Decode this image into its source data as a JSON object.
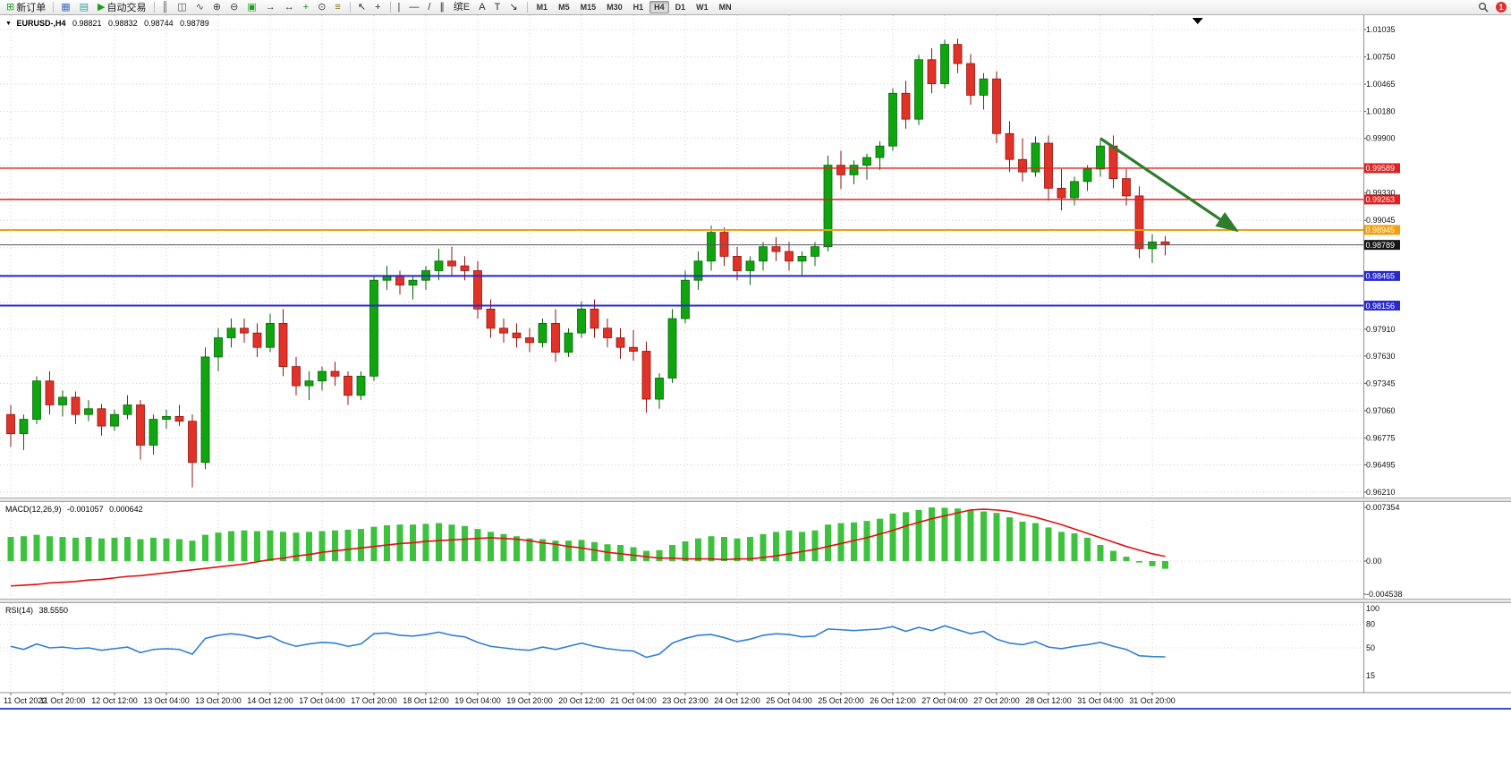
{
  "toolbar": {
    "items": [
      {
        "name": "new-order-button",
        "glyph": "⊞",
        "color": "#1d9f1d",
        "label": "新订单"
      },
      {
        "name": "separator"
      },
      {
        "name": "chart-window-icon",
        "glyph": "▦",
        "color": "#4070c0"
      },
      {
        "name": "profiles-icon",
        "glyph": "▤",
        "color": "#2f9f9f"
      },
      {
        "name": "auto-trading-button",
        "glyph": "▶",
        "color": "#1d9f1d",
        "label": "自动交易"
      },
      {
        "name": "separator"
      },
      {
        "name": "bar-chart-icon",
        "glyph": "║",
        "color": "#555555"
      },
      {
        "name": "candlestick-icon",
        "glyph": "◫",
        "color": "#555555"
      },
      {
        "name": "line-chart-icon",
        "glyph": "∿",
        "color": "#555555"
      },
      {
        "name": "zoom-in-icon",
        "glyph": "⊕",
        "color": "#404040"
      },
      {
        "name": "zoom-out-icon",
        "glyph": "⊖",
        "color": "#404040"
      },
      {
        "name": "tile-windows-icon",
        "glyph": "▣",
        "color": "#1d9f1d"
      },
      {
        "name": "auto-scroll-icon",
        "glyph": "→",
        "color": "#404040"
      },
      {
        "name": "chart-shift-icon",
        "glyph": "↔",
        "color": "#404040"
      },
      {
        "name": "indicators-icon",
        "glyph": "+",
        "color": "#0f8f0f"
      },
      {
        "name": "periods-icon",
        "glyph": "⊙",
        "color": "#404040"
      },
      {
        "name": "templates-icon",
        "glyph": "≡",
        "color": "#8a6a1a"
      },
      {
        "name": "separator"
      },
      {
        "name": "cursor-icon",
        "glyph": "↖",
        "color": "#303030"
      },
      {
        "name": "crosshair-icon",
        "glyph": "+",
        "color": "#303030"
      },
      {
        "name": "separator"
      },
      {
        "name": "vertical-line-icon",
        "glyph": "|",
        "color": "#303030"
      },
      {
        "name": "horizontal-line-icon",
        "glyph": "—",
        "color": "#303030"
      },
      {
        "name": "trendline-icon",
        "glyph": "/",
        "color": "#303030"
      },
      {
        "name": "channel-icon",
        "glyph": "∥",
        "color": "#303030"
      },
      {
        "name": "fibonacci-icon",
        "glyph": "缤E",
        "color": "#303030"
      },
      {
        "name": "text-icon",
        "glyph": "A",
        "color": "#303030"
      },
      {
        "name": "label-icon",
        "glyph": "T",
        "color": "#303030"
      },
      {
        "name": "arrows-icon",
        "glyph": "↘",
        "color": "#303030"
      },
      {
        "name": "separator"
      }
    ],
    "timeframes": [
      "M1",
      "M5",
      "M15",
      "M30",
      "H1",
      "H4",
      "D1",
      "W1",
      "MN"
    ],
    "active_timeframe": "H4",
    "badge": "1"
  },
  "chart": {
    "dropdown_glyph": "▼",
    "title": "EURUSD-,H4",
    "open": "0.98821",
    "high": "0.98832",
    "low": "0.98744",
    "close": "0.98789"
  },
  "chart_data": {
    "type": "candlestick",
    "symbol": "EURUSD-",
    "timeframe": "H4",
    "colors": {
      "up": "#0fa50f",
      "up_stroke": "#056505",
      "down": "#e23228",
      "down_stroke": "#8e1410",
      "grid": "#cfcfcf",
      "macd_hist": "#3cc23c",
      "macd_signal": "#e01010",
      "rsi_line": "#2f7fd6",
      "arrow": "#2d7d2d"
    },
    "price_axis": {
      "grid_prices": [
        1.01035,
        1.0075,
        1.00465,
        1.0018,
        0.999,
        0.99615,
        0.9933,
        0.99045,
        0.9876,
        0.98475,
        0.9819,
        0.9791,
        0.9763,
        0.97345,
        0.9706,
        0.96775,
        0.96495,
        0.9621
      ],
      "labels": [
        {
          "text": "1.01035",
          "price": 1.01035
        },
        {
          "text": "1.00750",
          "price": 1.0075
        },
        {
          "text": "1.00465",
          "price": 1.00465
        },
        {
          "text": "1.00180",
          "price": 1.0018
        },
        {
          "text": "0.99900",
          "price": 0.999
        },
        {
          "text": "0.99330",
          "price": 0.9933
        },
        {
          "text": "0.99045",
          "price": 0.99045
        },
        {
          "text": "0.97910",
          "price": 0.9791
        },
        {
          "text": "0.97630",
          "price": 0.9763
        },
        {
          "text": "0.97345",
          "price": 0.97345
        },
        {
          "text": "0.97060",
          "price": 0.9706
        },
        {
          "text": "0.96775",
          "price": 0.96775
        },
        {
          "text": "0.96495",
          "price": 0.96495
        },
        {
          "text": "0.96210",
          "price": 0.9621
        }
      ]
    },
    "hlines": [
      {
        "price": 0.99589,
        "label": "0.99589",
        "color": "#e02020",
        "width": 1.4
      },
      {
        "price": 0.99263,
        "label": "0.99263",
        "color": "#e02020",
        "width": 1.4
      },
      {
        "price": 0.98945,
        "label": "0.98945",
        "color": "#f0a010",
        "width": 2
      },
      {
        "price": 0.98465,
        "label": "0.98465",
        "color": "#2828d0",
        "width": 2
      },
      {
        "price": 0.98156,
        "label": "0.98156",
        "color": "#2828d0",
        "width": 2
      }
    ],
    "current_price": {
      "price": 0.98789,
      "label": "0.98789",
      "line_color": "#555555",
      "badge_color": "#141414"
    },
    "annotation_arrow": {
      "from_candle": 84,
      "from_price": 0.999,
      "to_candle": 94.5,
      "to_price": 0.9894
    },
    "shift_marker_candle": 91.5,
    "x_labels": [
      "11 Oct 2022",
      "11 Oct 20:00",
      "12 Oct 12:00",
      "13 Oct 04:00",
      "13 Oct 20:00",
      "14 Oct 12:00",
      "17 Oct 04:00",
      "17 Oct 20:00",
      "18 Oct 12:00",
      "19 Oct 04:00",
      "19 Oct 20:00",
      "20 Oct 12:00",
      "21 Oct 04:00",
      "23 Oct 23:00",
      "24 Oct 12:00",
      "25 Oct 04:00",
      "25 Oct 20:00",
      "26 Oct 12:00",
      "27 Oct 04:00",
      "27 Oct 20:00",
      "28 Oct 12:00",
      "31 Oct 04:00",
      "31 Oct 20:00"
    ],
    "candles": [
      [
        0.9702,
        0.9712,
        0.9668,
        0.9682
      ],
      [
        0.9682,
        0.9702,
        0.9665,
        0.9697
      ],
      [
        0.9697,
        0.9742,
        0.9692,
        0.9737
      ],
      [
        0.9737,
        0.9747,
        0.9702,
        0.9712
      ],
      [
        0.9712,
        0.9727,
        0.97,
        0.972
      ],
      [
        0.972,
        0.9726,
        0.9692,
        0.9702
      ],
      [
        0.9702,
        0.9717,
        0.9695,
        0.9708
      ],
      [
        0.9708,
        0.9713,
        0.968,
        0.969
      ],
      [
        0.969,
        0.9707,
        0.9685,
        0.9702
      ],
      [
        0.9702,
        0.9722,
        0.9697,
        0.9712
      ],
      [
        0.9712,
        0.9717,
        0.9655,
        0.967
      ],
      [
        0.967,
        0.9702,
        0.966,
        0.9697
      ],
      [
        0.9697,
        0.9707,
        0.9687,
        0.97
      ],
      [
        0.97,
        0.9712,
        0.969,
        0.9695
      ],
      [
        0.9695,
        0.9702,
        0.9626,
        0.9652
      ],
      [
        0.9652,
        0.9772,
        0.9645,
        0.9762
      ],
      [
        0.9762,
        0.9792,
        0.9747,
        0.9782
      ],
      [
        0.9782,
        0.9802,
        0.9772,
        0.9792
      ],
      [
        0.9792,
        0.9802,
        0.9777,
        0.9787
      ],
      [
        0.9787,
        0.9797,
        0.9762,
        0.9772
      ],
      [
        0.9772,
        0.9807,
        0.9767,
        0.9797
      ],
      [
        0.9797,
        0.9812,
        0.9742,
        0.9752
      ],
      [
        0.9752,
        0.9762,
        0.9722,
        0.9732
      ],
      [
        0.9732,
        0.9747,
        0.9717,
        0.9737
      ],
      [
        0.9737,
        0.9752,
        0.9727,
        0.9747
      ],
      [
        0.9747,
        0.9757,
        0.9732,
        0.9742
      ],
      [
        0.9742,
        0.9747,
        0.9712,
        0.9722
      ],
      [
        0.9722,
        0.9747,
        0.9717,
        0.9742
      ],
      [
        0.9742,
        0.9847,
        0.9737,
        0.9842
      ],
      [
        0.9842,
        0.9857,
        0.9832,
        0.9847
      ],
      [
        0.9847,
        0.9852,
        0.9827,
        0.9837
      ],
      [
        0.9837,
        0.9847,
        0.9822,
        0.9842
      ],
      [
        0.9842,
        0.9857,
        0.9832,
        0.9852
      ],
      [
        0.9852,
        0.9875,
        0.9842,
        0.9862
      ],
      [
        0.9862,
        0.9877,
        0.9847,
        0.9857
      ],
      [
        0.9857,
        0.9867,
        0.9842,
        0.9852
      ],
      [
        0.9852,
        0.9862,
        0.9802,
        0.9812
      ],
      [
        0.9812,
        0.9822,
        0.9782,
        0.9792
      ],
      [
        0.9792,
        0.9802,
        0.9777,
        0.9787
      ],
      [
        0.9787,
        0.9797,
        0.9772,
        0.9782
      ],
      [
        0.9782,
        0.9792,
        0.9767,
        0.9777
      ],
      [
        0.9777,
        0.9802,
        0.9772,
        0.9797
      ],
      [
        0.9797,
        0.9812,
        0.9757,
        0.9767
      ],
      [
        0.9767,
        0.9792,
        0.9762,
        0.9787
      ],
      [
        0.9787,
        0.982,
        0.9782,
        0.9812
      ],
      [
        0.9812,
        0.9822,
        0.9782,
        0.9792
      ],
      [
        0.9792,
        0.9802,
        0.9772,
        0.9782
      ],
      [
        0.9782,
        0.9792,
        0.976,
        0.9772
      ],
      [
        0.9772,
        0.979,
        0.9758,
        0.9768
      ],
      [
        0.9768,
        0.9778,
        0.9704,
        0.9718
      ],
      [
        0.9718,
        0.9745,
        0.9708,
        0.974
      ],
      [
        0.974,
        0.9812,
        0.9735,
        0.9802
      ],
      [
        0.9802,
        0.9852,
        0.9797,
        0.9842
      ],
      [
        0.9842,
        0.9872,
        0.9832,
        0.9862
      ],
      [
        0.9862,
        0.9899,
        0.9852,
        0.9892
      ],
      [
        0.9892,
        0.9897,
        0.9857,
        0.9867
      ],
      [
        0.9867,
        0.9877,
        0.9842,
        0.9852
      ],
      [
        0.9852,
        0.9867,
        0.9837,
        0.9862
      ],
      [
        0.9862,
        0.9882,
        0.9852,
        0.9877
      ],
      [
        0.9877,
        0.9887,
        0.9862,
        0.9872
      ],
      [
        0.9872,
        0.9882,
        0.9852,
        0.9862
      ],
      [
        0.9862,
        0.9872,
        0.9847,
        0.9867
      ],
      [
        0.9867,
        0.9882,
        0.9857,
        0.9877
      ],
      [
        0.9877,
        0.9972,
        0.9872,
        0.9962
      ],
      [
        0.9962,
        0.9977,
        0.9937,
        0.9952
      ],
      [
        0.9952,
        0.9967,
        0.9942,
        0.9962
      ],
      [
        0.9962,
        0.9974,
        0.9947,
        0.997
      ],
      [
        0.997,
        0.9987,
        0.9957,
        0.9982
      ],
      [
        0.9982,
        1.0042,
        0.9977,
        1.0037
      ],
      [
        1.0037,
        1.005,
        1.0,
        1.001
      ],
      [
        1.001,
        1.0077,
        1.0004,
        1.0072
      ],
      [
        1.0072,
        1.0084,
        1.0037,
        1.0047
      ],
      [
        1.0047,
        1.0093,
        1.0042,
        1.0088
      ],
      [
        1.0088,
        1.0094,
        1.0058,
        1.0068
      ],
      [
        1.0068,
        1.0078,
        1.0025,
        1.0035
      ],
      [
        1.0035,
        1.0058,
        1.002,
        1.0052
      ],
      [
        1.0052,
        1.006,
        0.9985,
        0.9995
      ],
      [
        0.9995,
        1.0008,
        0.9955,
        0.9968
      ],
      [
        0.9968,
        0.999,
        0.9945,
        0.9955
      ],
      [
        0.9955,
        0.9992,
        0.995,
        0.9985
      ],
      [
        0.9985,
        0.9993,
        0.9925,
        0.9938
      ],
      [
        0.9938,
        0.9958,
        0.9915,
        0.9928
      ],
      [
        0.9928,
        0.995,
        0.992,
        0.9945
      ],
      [
        0.9945,
        0.9962,
        0.9935,
        0.9958
      ],
      [
        0.9958,
        0.9988,
        0.995,
        0.9982
      ],
      [
        0.9982,
        0.9993,
        0.9938,
        0.9948
      ],
      [
        0.9948,
        0.9958,
        0.992,
        0.993
      ],
      [
        0.993,
        0.994,
        0.9865,
        0.9875
      ],
      [
        0.9875,
        0.989,
        0.986,
        0.9882
      ],
      [
        0.9882,
        0.9888,
        0.9868,
        0.98789
      ]
    ],
    "macd": {
      "name": "MACD(12,26,9)",
      "main_value": "-0.001057",
      "signal_value": "0.000642",
      "axis": [
        {
          "text": "0.007354",
          "value": 0.007354
        },
        {
          "text": "0.00",
          "value": 0
        },
        {
          "text": "-0.004538",
          "value": -0.004538
        }
      ],
      "histogram": [
        0.0033,
        0.0034,
        0.0036,
        0.0034,
        0.0033,
        0.0032,
        0.0033,
        0.0031,
        0.0032,
        0.0033,
        0.003,
        0.0032,
        0.0031,
        0.003,
        0.0028,
        0.0036,
        0.0039,
        0.0041,
        0.0042,
        0.0041,
        0.0042,
        0.004,
        0.0039,
        0.004,
        0.0041,
        0.0042,
        0.0043,
        0.0044,
        0.0047,
        0.0049,
        0.005,
        0.005,
        0.0051,
        0.0052,
        0.005,
        0.0048,
        0.0044,
        0.004,
        0.0037,
        0.0034,
        0.0031,
        0.003,
        0.0028,
        0.0028,
        0.0029,
        0.0026,
        0.0023,
        0.0022,
        0.0019,
        0.0014,
        0.0015,
        0.0022,
        0.0027,
        0.0031,
        0.0034,
        0.0033,
        0.0031,
        0.0033,
        0.0037,
        0.004,
        0.0042,
        0.004,
        0.0042,
        0.005,
        0.0052,
        0.0053,
        0.0055,
        0.0058,
        0.0065,
        0.0067,
        0.007,
        0.00735,
        0.0073,
        0.0072,
        0.007,
        0.0068,
        0.0066,
        0.006,
        0.0054,
        0.0052,
        0.0046,
        0.004,
        0.0038,
        0.0032,
        0.0022,
        0.0014,
        0.0006,
        -0.0002,
        -0.0007,
        -0.001057
      ],
      "signal": [
        -0.0034,
        -0.0033,
        -0.0032,
        -0.003,
        -0.0029,
        -0.0028,
        -0.0026,
        -0.0025,
        -0.0023,
        -0.0021,
        -0.002,
        -0.0018,
        -0.0016,
        -0.0014,
        -0.0012,
        -0.001,
        -0.0008,
        -0.0006,
        -0.0004,
        -0.0001,
        0.0002,
        0.0004,
        0.0007,
        0.0009,
        0.0012,
        0.0014,
        0.0016,
        0.0018,
        0.002,
        0.0022,
        0.0024,
        0.0025,
        0.0027,
        0.0028,
        0.0029,
        0.003,
        0.0031,
        0.0032,
        0.0031,
        0.003,
        0.0028,
        0.0025,
        0.0023,
        0.002,
        0.0018,
        0.0015,
        0.0012,
        0.001,
        0.0008,
        0.0006,
        0.0004,
        0.0004,
        0.0003,
        0.0003,
        0.0003,
        0.0002,
        0.0003,
        0.0003,
        0.0005,
        0.0007,
        0.001,
        0.0013,
        0.0016,
        0.002,
        0.0024,
        0.0028,
        0.0032,
        0.0037,
        0.0042,
        0.0048,
        0.0053,
        0.0058,
        0.0062,
        0.0066,
        0.007,
        0.0071,
        0.007,
        0.0068,
        0.0064,
        0.006,
        0.0055,
        0.005,
        0.0044,
        0.0038,
        0.0032,
        0.0026,
        0.002,
        0.0015,
        0.001,
        0.000642
      ]
    },
    "rsi": {
      "name": "RSI(14)",
      "value_text": "38.5550",
      "levels": [
        80,
        50
      ],
      "axis_labels": [
        {
          "text": "100",
          "value": 100
        },
        {
          "text": "80",
          "value": 80
        },
        {
          "text": "50",
          "value": 50
        },
        {
          "text": "15",
          "value": 15
        }
      ],
      "values": [
        52,
        48,
        55,
        50,
        51,
        49,
        50,
        47,
        49,
        51,
        44,
        48,
        49,
        48,
        42,
        62,
        66,
        68,
        66,
        62,
        65,
        57,
        52,
        55,
        57,
        56,
        52,
        55,
        68,
        69,
        66,
        65,
        67,
        70,
        66,
        64,
        57,
        52,
        50,
        48,
        47,
        51,
        48,
        52,
        56,
        52,
        49,
        47,
        46,
        38,
        42,
        56,
        62,
        66,
        67,
        63,
        58,
        61,
        66,
        68,
        67,
        64,
        65,
        74,
        73,
        72,
        73,
        74,
        77,
        71,
        76,
        72,
        78,
        73,
        68,
        71,
        61,
        56,
        54,
        58,
        51,
        49,
        52,
        54,
        57,
        52,
        48,
        40,
        39,
        38.56
      ]
    }
  }
}
